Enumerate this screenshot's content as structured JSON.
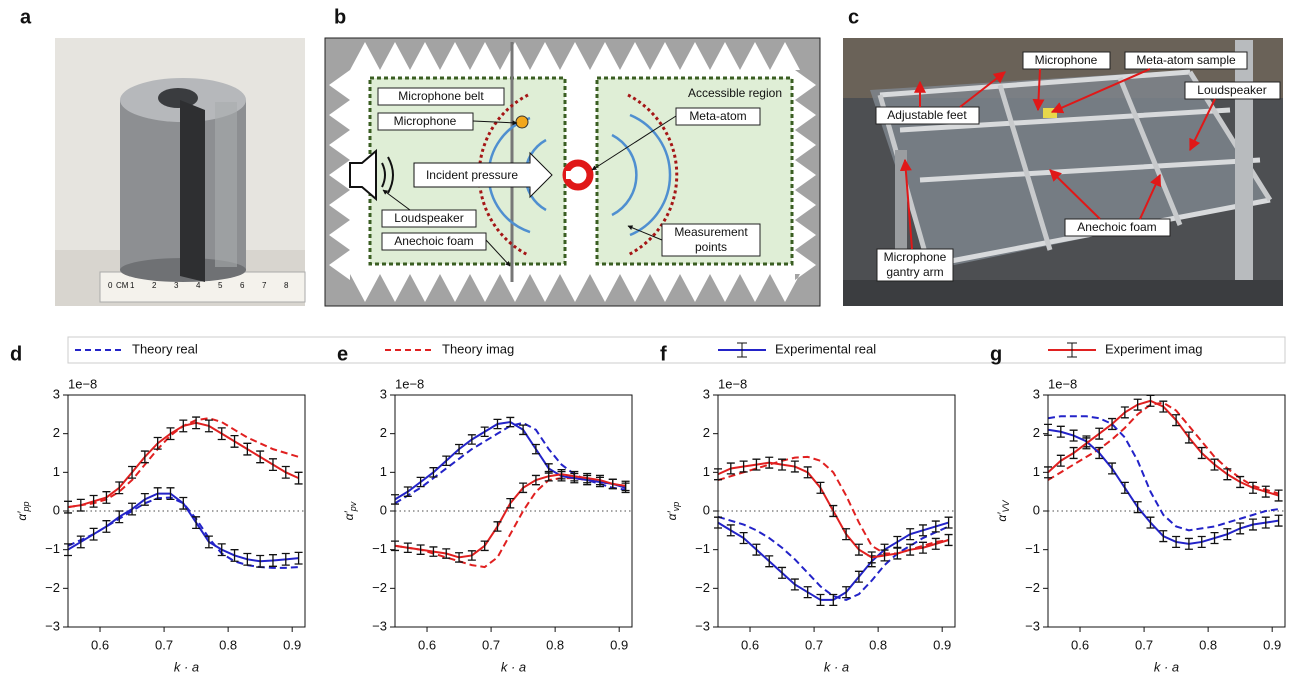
{
  "panels": {
    "a": {
      "label": "a",
      "ruler": [
        "0",
        "CM",
        "1",
        "2",
        "3",
        "4",
        "5",
        "6",
        "7",
        "8"
      ]
    },
    "b": {
      "label": "b",
      "labels": {
        "microphone_belt": "Microphone belt",
        "microphone": "Microphone",
        "accessible_region": "Accessible region",
        "meta_atom": "Meta-atom",
        "incident_pressure": "Incident pressure",
        "loudspeaker": "Loudspeaker",
        "anechoic_foam": "Anechoic foam",
        "measurement_points": [
          "Measurement",
          "points"
        ]
      }
    },
    "c": {
      "label": "c",
      "labels": {
        "microphone": "Microphone",
        "meta_atom_sample": "Meta-atom sample",
        "loudspeaker": "Loudspeaker",
        "adjustable_feet": "Adjustable feet",
        "anechoic_foam": "Anechoic foam",
        "gantry_arm": [
          "Microphone",
          "gantry arm"
        ]
      }
    }
  },
  "chart_data": [
    {
      "type": "line",
      "label": "d",
      "scale_label": "1e−8",
      "ylabel": "α′",
      "ylabel_sub": "pp",
      "xlabel": "k · a",
      "x": [
        0.55,
        0.57,
        0.59,
        0.61,
        0.63,
        0.65,
        0.67,
        0.69,
        0.71,
        0.73,
        0.75,
        0.77,
        0.79,
        0.81,
        0.83,
        0.85,
        0.87,
        0.89,
        0.91
      ],
      "xlim": [
        0.55,
        0.92
      ],
      "ylim": [
        -3,
        3
      ],
      "xticks": [
        0.6,
        0.7,
        0.8,
        0.9
      ],
      "yticks": [
        {
          "value": -3,
          "label": "−3"
        },
        {
          "value": -2,
          "label": "−2"
        },
        {
          "value": -1,
          "label": "−1"
        },
        0,
        1,
        2,
        3
      ],
      "hline": 0,
      "series": [
        {
          "name": "Theory real",
          "color": "#2323c8",
          "style": "dashed",
          "values": [
            -0.9,
            -0.75,
            -0.6,
            -0.4,
            -0.2,
            0.0,
            0.2,
            0.33,
            0.35,
            0.2,
            -0.2,
            -0.7,
            -1.1,
            -1.3,
            -1.4,
            -1.45,
            -1.47,
            -1.47,
            -1.45
          ]
        },
        {
          "name": "Theory imag",
          "color": "#e02020",
          "style": "dashed",
          "values": [
            0.1,
            0.15,
            0.2,
            0.3,
            0.5,
            0.8,
            1.2,
            1.6,
            1.95,
            2.2,
            2.35,
            2.4,
            2.3,
            2.1,
            1.9,
            1.75,
            1.6,
            1.5,
            1.4
          ]
        },
        {
          "name": "Experimental real",
          "color": "#2323c8",
          "style": "solid",
          "values": [
            -1.0,
            -0.8,
            -0.6,
            -0.4,
            -0.15,
            0.05,
            0.3,
            0.45,
            0.45,
            0.2,
            -0.3,
            -0.8,
            -1.0,
            -1.15,
            -1.25,
            -1.3,
            -1.28,
            -1.25,
            -1.22
          ],
          "errors": [
            0.15,
            0.15,
            0.15,
            0.15,
            0.15,
            0.15,
            0.15,
            0.15,
            0.15,
            0.15,
            0.15,
            0.15,
            0.15,
            0.15,
            0.15,
            0.15,
            0.15,
            0.15,
            0.15
          ]
        },
        {
          "name": "Experiment imag",
          "color": "#e02020",
          "style": "solid",
          "values": [
            0.1,
            0.15,
            0.25,
            0.35,
            0.6,
            1.0,
            1.4,
            1.75,
            2.0,
            2.2,
            2.28,
            2.2,
            2.0,
            1.8,
            1.6,
            1.4,
            1.2,
            1.0,
            0.85
          ],
          "errors": [
            0.15,
            0.15,
            0.15,
            0.15,
            0.15,
            0.15,
            0.15,
            0.15,
            0.15,
            0.15,
            0.15,
            0.15,
            0.15,
            0.15,
            0.15,
            0.15,
            0.15,
            0.15,
            0.15
          ]
        }
      ]
    },
    {
      "type": "line",
      "label": "e",
      "scale_label": "1e−8",
      "ylabel": "α′",
      "ylabel_sub": "pv",
      "xlabel": "k · a",
      "x": [
        0.55,
        0.57,
        0.59,
        0.61,
        0.63,
        0.65,
        0.67,
        0.69,
        0.71,
        0.73,
        0.75,
        0.77,
        0.79,
        0.81,
        0.83,
        0.85,
        0.87,
        0.89,
        0.91
      ],
      "xlim": [
        0.55,
        0.92
      ],
      "ylim": [
        -3,
        3
      ],
      "xticks": [
        0.6,
        0.7,
        0.8,
        0.9
      ],
      "yticks": [
        {
          "value": -3,
          "label": "−3"
        },
        {
          "value": -2,
          "label": "−2"
        },
        {
          "value": -1,
          "label": "−1"
        },
        0,
        1,
        2,
        3
      ],
      "hline": 0,
      "series": [
        {
          "color": "#2323c8",
          "style": "dashed",
          "values": [
            0.2,
            0.4,
            0.6,
            0.85,
            1.1,
            1.35,
            1.6,
            1.8,
            2.0,
            2.2,
            2.28,
            2.1,
            1.6,
            1.2,
            0.95,
            0.8,
            0.7,
            0.6,
            0.55
          ]
        },
        {
          "color": "#e02020",
          "style": "dashed",
          "values": [
            -0.9,
            -0.95,
            -1.0,
            -1.1,
            -1.2,
            -1.3,
            -1.4,
            -1.45,
            -1.2,
            -0.6,
            0.0,
            0.5,
            0.8,
            0.85,
            0.85,
            0.8,
            0.75,
            0.7,
            0.65
          ]
        },
        {
          "color": "#2323c8",
          "style": "solid",
          "values": [
            0.3,
            0.5,
            0.75,
            1.0,
            1.3,
            1.6,
            1.85,
            2.05,
            2.25,
            2.3,
            2.1,
            1.6,
            1.1,
            0.9,
            0.85,
            0.8,
            0.75,
            0.7,
            0.6
          ],
          "errors": [
            0.12,
            0.12,
            0.12,
            0.12,
            0.12,
            0.12,
            0.12,
            0.12,
            0.12,
            0.12,
            0.12,
            0.12,
            0.12,
            0.12,
            0.12,
            0.12,
            0.12,
            0.12,
            0.12
          ]
        },
        {
          "color": "#e02020",
          "style": "solid",
          "values": [
            -0.9,
            -0.95,
            -1.0,
            -1.05,
            -1.1,
            -1.2,
            -1.15,
            -0.9,
            -0.4,
            0.2,
            0.6,
            0.8,
            0.9,
            0.95,
            0.9,
            0.85,
            0.8,
            0.7,
            0.65
          ],
          "errors": [
            0.12,
            0.12,
            0.12,
            0.12,
            0.12,
            0.12,
            0.12,
            0.12,
            0.12,
            0.12,
            0.12,
            0.12,
            0.12,
            0.12,
            0.12,
            0.12,
            0.12,
            0.12,
            0.12
          ]
        }
      ]
    },
    {
      "type": "line",
      "label": "f",
      "scale_label": "1e−8",
      "ylabel": "α′",
      "ylabel_sub": "vp",
      "xlabel": "k · a",
      "x": [
        0.55,
        0.57,
        0.59,
        0.61,
        0.63,
        0.65,
        0.67,
        0.69,
        0.71,
        0.73,
        0.75,
        0.77,
        0.79,
        0.81,
        0.83,
        0.85,
        0.87,
        0.89,
        0.91
      ],
      "xlim": [
        0.55,
        0.92
      ],
      "ylim": [
        -3,
        3
      ],
      "xticks": [
        0.6,
        0.7,
        0.8,
        0.9
      ],
      "yticks": [
        {
          "value": -3,
          "label": "−3"
        },
        {
          "value": -2,
          "label": "−2"
        },
        {
          "value": -1,
          "label": "−1"
        },
        0,
        1,
        2,
        3
      ],
      "hline": 0,
      "series": [
        {
          "color": "#2323c8",
          "style": "dashed",
          "values": [
            -0.15,
            -0.25,
            -0.35,
            -0.5,
            -0.7,
            -0.95,
            -1.25,
            -1.6,
            -1.95,
            -2.2,
            -2.3,
            -2.15,
            -1.8,
            -1.4,
            -1.1,
            -0.9,
            -0.7,
            -0.55,
            -0.4
          ]
        },
        {
          "color": "#e02020",
          "style": "dashed",
          "values": [
            0.8,
            0.9,
            1.0,
            1.1,
            1.2,
            1.3,
            1.38,
            1.4,
            1.3,
            1.0,
            0.4,
            -0.3,
            -0.9,
            -1.1,
            -1.1,
            -1.0,
            -0.9,
            -0.8,
            -0.75
          ]
        },
        {
          "color": "#2323c8",
          "style": "solid",
          "values": [
            -0.3,
            -0.5,
            -0.7,
            -1.0,
            -1.3,
            -1.6,
            -1.9,
            -2.1,
            -2.3,
            -2.3,
            -2.1,
            -1.7,
            -1.3,
            -1.0,
            -0.8,
            -0.6,
            -0.5,
            -0.4,
            -0.3
          ],
          "errors": [
            0.14,
            0.14,
            0.14,
            0.14,
            0.14,
            0.14,
            0.14,
            0.14,
            0.14,
            0.14,
            0.14,
            0.14,
            0.14,
            0.14,
            0.14,
            0.14,
            0.14,
            0.14,
            0.14
          ]
        },
        {
          "color": "#e02020",
          "style": "solid",
          "values": [
            0.95,
            1.1,
            1.15,
            1.2,
            1.25,
            1.2,
            1.15,
            1.0,
            0.6,
            0.0,
            -0.6,
            -1.0,
            -1.2,
            -1.15,
            -1.1,
            -1.0,
            -0.95,
            -0.85,
            -0.75
          ],
          "errors": [
            0.14,
            0.14,
            0.14,
            0.14,
            0.14,
            0.14,
            0.14,
            0.14,
            0.14,
            0.14,
            0.14,
            0.14,
            0.14,
            0.14,
            0.14,
            0.14,
            0.14,
            0.14,
            0.14
          ]
        }
      ]
    },
    {
      "type": "line",
      "label": "g",
      "scale_label": "1e−8",
      "ylabel": "α′",
      "ylabel_sub": "VV",
      "xlabel": "k · a",
      "x": [
        0.55,
        0.57,
        0.59,
        0.61,
        0.63,
        0.65,
        0.67,
        0.69,
        0.71,
        0.73,
        0.75,
        0.77,
        0.79,
        0.81,
        0.83,
        0.85,
        0.87,
        0.89,
        0.91
      ],
      "xlim": [
        0.55,
        0.92
      ],
      "ylim": [
        -3,
        3
      ],
      "xticks": [
        0.6,
        0.7,
        0.8,
        0.9
      ],
      "yticks": [
        {
          "value": -3,
          "label": "−3"
        },
        {
          "value": -2,
          "label": "−2"
        },
        {
          "value": -1,
          "label": "−1"
        },
        0,
        1,
        2,
        3
      ],
      "hline": 0,
      "series": [
        {
          "color": "#2323c8",
          "style": "dashed",
          "values": [
            2.4,
            2.45,
            2.45,
            2.45,
            2.4,
            2.25,
            1.9,
            1.3,
            0.5,
            -0.1,
            -0.4,
            -0.5,
            -0.45,
            -0.4,
            -0.3,
            -0.2,
            -0.1,
            0.0,
            0.05
          ]
        },
        {
          "color": "#e02020",
          "style": "dashed",
          "values": [
            0.8,
            1.0,
            1.2,
            1.4,
            1.6,
            1.85,
            2.15,
            2.5,
            2.75,
            2.8,
            2.6,
            2.2,
            1.8,
            1.4,
            1.1,
            0.85,
            0.65,
            0.55,
            0.45
          ]
        },
        {
          "color": "#2323c8",
          "style": "solid",
          "values": [
            2.1,
            2.05,
            1.95,
            1.8,
            1.5,
            1.1,
            0.6,
            0.1,
            -0.3,
            -0.65,
            -0.8,
            -0.85,
            -0.8,
            -0.7,
            -0.6,
            -0.45,
            -0.35,
            -0.3,
            -0.25
          ],
          "errors": [
            0.14,
            0.14,
            0.14,
            0.14,
            0.14,
            0.14,
            0.14,
            0.14,
            0.14,
            0.14,
            0.14,
            0.14,
            0.14,
            0.14,
            0.14,
            0.14,
            0.14,
            0.14,
            0.14
          ]
        },
        {
          "color": "#e02020",
          "style": "solid",
          "values": [
            1.0,
            1.3,
            1.5,
            1.75,
            2.0,
            2.25,
            2.55,
            2.75,
            2.85,
            2.7,
            2.35,
            1.9,
            1.5,
            1.2,
            0.95,
            0.75,
            0.6,
            0.5,
            0.4
          ],
          "errors": [
            0.14,
            0.14,
            0.14,
            0.14,
            0.14,
            0.14,
            0.14,
            0.14,
            0.14,
            0.14,
            0.14,
            0.14,
            0.14,
            0.14,
            0.14,
            0.14,
            0.14,
            0.14,
            0.14
          ]
        }
      ]
    }
  ]
}
